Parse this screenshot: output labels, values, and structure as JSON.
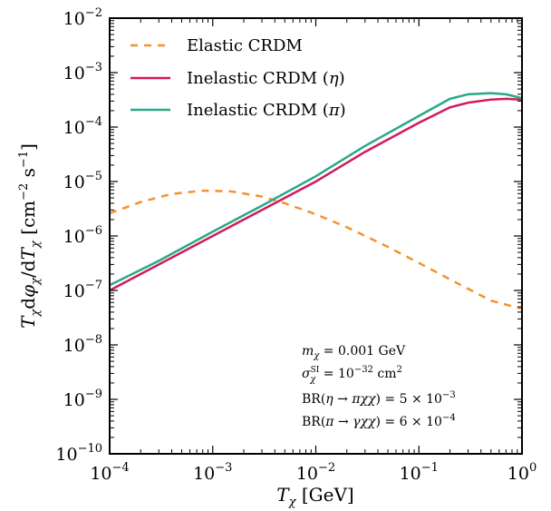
{
  "chart_data": {
    "type": "line",
    "xscale": "log",
    "yscale": "log",
    "xlim": [
      0.0001,
      1
    ],
    "ylim": [
      1e-10,
      0.01
    ],
    "xlabel": "T_χ [GeV]",
    "ylabel": "T_χ dφ_χ/dT_χ [cm⁻² s⁻¹]",
    "x_ticks": [
      {
        "value": 0.0001,
        "base": "10",
        "exp": "−4"
      },
      {
        "value": 0.001,
        "base": "10",
        "exp": "−3"
      },
      {
        "value": 0.01,
        "base": "10",
        "exp": "−2"
      },
      {
        "value": 0.1,
        "base": "10",
        "exp": "−1"
      },
      {
        "value": 1,
        "base": "10",
        "exp": "0"
      }
    ],
    "y_ticks": [
      {
        "value": 1e-10,
        "base": "10",
        "exp": "−10"
      },
      {
        "value": 1e-09,
        "base": "10",
        "exp": "−9"
      },
      {
        "value": 1e-08,
        "base": "10",
        "exp": "−8"
      },
      {
        "value": 1e-07,
        "base": "10",
        "exp": "−7"
      },
      {
        "value": 1e-06,
        "base": "10",
        "exp": "−6"
      },
      {
        "value": 1e-05,
        "base": "10",
        "exp": "−5"
      },
      {
        "value": 0.0001,
        "base": "10",
        "exp": "−4"
      },
      {
        "value": 0.001,
        "base": "10",
        "exp": "−3"
      },
      {
        "value": 0.01,
        "base": "10",
        "exp": "−2"
      }
    ],
    "legend_position": "top-left",
    "grid": false,
    "series": [
      {
        "name": "Elastic CRDM",
        "color": "#f5922f",
        "dash": "dashed",
        "x": [
          0.0001,
          0.0002,
          0.0004,
          0.0008,
          0.0015,
          0.003,
          0.005,
          0.01,
          0.02,
          0.05,
          0.1,
          0.2,
          0.5,
          1
        ],
        "y": [
          2.6e-06,
          4.2e-06,
          5.9e-06,
          6.8e-06,
          6.6e-06,
          5.3e-06,
          4e-06,
          2.5e-06,
          1.45e-06,
          6.3e-07,
          3.2e-07,
          1.6e-07,
          6.5e-08,
          4.6e-08
        ]
      },
      {
        "name": "Inelastic CRDM (η)",
        "color": "#d01c5b",
        "dash": "solid",
        "x": [
          0.0001,
          0.0003,
          0.001,
          0.003,
          0.01,
          0.03,
          0.1,
          0.2,
          0.3,
          0.5,
          0.7,
          1
        ],
        "y": [
          1e-07,
          3e-07,
          1e-06,
          3e-06,
          1e-05,
          3.5e-05,
          0.00012,
          0.00023,
          0.00028,
          0.00032,
          0.00033,
          0.00032
        ]
      },
      {
        "name": "Inelastic CRDM (π)",
        "color": "#2ba789",
        "dash": "solid",
        "x": [
          0.0001,
          0.0003,
          0.001,
          0.003,
          0.01,
          0.03,
          0.1,
          0.2,
          0.3,
          0.5,
          0.7,
          1
        ],
        "y": [
          1.25e-07,
          3.5e-07,
          1.2e-06,
          3.6e-06,
          1.25e-05,
          4.5e-05,
          0.00016,
          0.00033,
          0.0004,
          0.00042,
          0.0004,
          0.00034
        ]
      }
    ],
    "annotations": [
      "m_χ = 0.001 GeV",
      "σ_χ^SI = 10⁻³² cm²",
      "BR(η → πχχ) = 5 × 10⁻³",
      "BR(π → γχχ) = 6 × 10⁻⁴"
    ]
  }
}
